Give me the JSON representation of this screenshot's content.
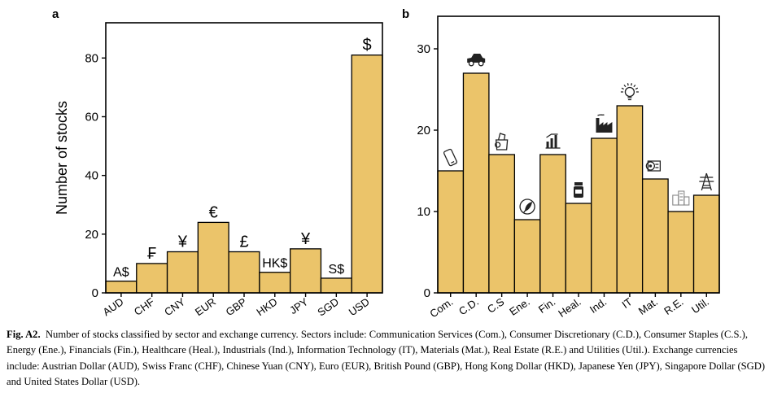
{
  "chart_data": [
    {
      "panel_label": "a",
      "type": "bar",
      "ylabel": "Number of stocks",
      "xlabel": "",
      "ylim": [
        0,
        92
      ],
      "yticks": [
        0,
        20,
        40,
        60,
        80
      ],
      "categories": [
        "AUD",
        "CHF",
        "CNY",
        "EUR",
        "GBP",
        "HKD",
        "JPY",
        "SGD",
        "USD"
      ],
      "values": [
        4,
        10,
        14,
        24,
        14,
        7,
        15,
        5,
        81
      ],
      "bar_symbols": [
        "A$",
        "₣",
        "¥",
        "€",
        "£",
        "HK$",
        "¥",
        "S$",
        "$"
      ],
      "bar_color": "#EBC46A",
      "grid": false
    },
    {
      "panel_label": "b",
      "type": "bar",
      "ylabel": "",
      "xlabel": "",
      "ylim": [
        0,
        34
      ],
      "yticks": [
        0,
        10,
        20,
        30
      ],
      "categories": [
        "Com.",
        "C.D.",
        "C.S",
        "Ene.",
        "Fin.",
        "Heal.",
        "Ind.",
        "IT",
        "Mat.",
        "R.E.",
        "Util."
      ],
      "values": [
        15,
        27,
        17,
        9,
        17,
        11,
        19,
        23,
        14,
        10,
        12
      ],
      "bar_icons": [
        "phone-icon",
        "car-icon",
        "grocery-bag-icon",
        "energy-leaf-icon",
        "bar-chart-icon",
        "medicine-bottle-icon",
        "factory-icon",
        "lightbulb-icon",
        "paper-roll-icon",
        "buildings-icon",
        "power-tower-icon"
      ],
      "bar_color": "#EBC46A",
      "grid": false
    }
  ],
  "caption": {
    "label": "Fig. A2.",
    "text": "Number of stocks classified by sector and exchange currency. Sectors include: Communication Services (Com.), Consumer Discretionary (C.D.), Consumer Staples (C.S.), Energy (Ene.), Financials (Fin.), Healthcare (Heal.), Industrials (Ind.), Information Technology (IT), Materials (Mat.), Real Estate (R.E.) and Utilities (Util.). Exchange currencies include: Austrian Dollar (AUD), Swiss Franc (CHF), Chinese Yuan (CNY), Euro (EUR), British Pound (GBP), Hong Kong Dollar (HKD), Japanese Yen (JPY), Singapore Dollar (SGD) and United States Dollar (USD)."
  }
}
